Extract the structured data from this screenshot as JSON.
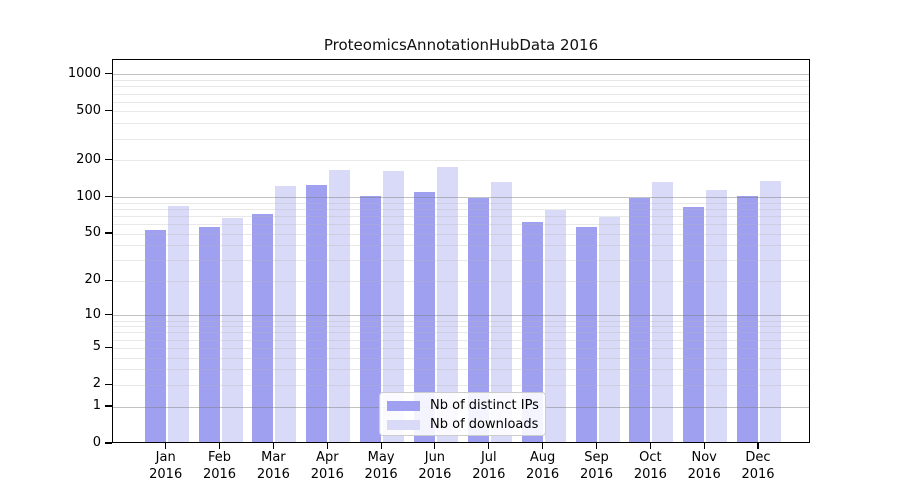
{
  "chart_data": {
    "type": "bar",
    "title": "ProteomicsAnnotationHubData 2016",
    "categories": [
      "Jan",
      "Feb",
      "Mar",
      "Apr",
      "May",
      "Jun",
      "Jul",
      "Aug",
      "Sep",
      "Oct",
      "Nov",
      "Dec"
    ],
    "x_year_label": "2016",
    "series": [
      {
        "name": "Nb of distinct IPs",
        "color": "#a0a0f0",
        "values": [
          52,
          55,
          70,
          122,
          100,
          106,
          96,
          60,
          55,
          95,
          80,
          100
        ]
      },
      {
        "name": "Nb of downloads",
        "color": "#d9d9f8",
        "values": [
          82,
          65,
          120,
          163,
          160,
          170,
          130,
          76,
          67,
          130,
          112,
          131
        ]
      }
    ],
    "yscale": "log1p",
    "ylim": [
      0,
      1300
    ],
    "yticks": [
      1000,
      500,
      200,
      100,
      50,
      20,
      10,
      5,
      2,
      1,
      0
    ],
    "grid": {
      "enabled": true,
      "major_lines": [
        1,
        10,
        100,
        1000
      ],
      "minor_multiples_per_decade": [
        2,
        3,
        4,
        5,
        6,
        7,
        8,
        9
      ]
    },
    "legend_position": "bottom-center"
  },
  "colors": {
    "background": "#ffffff",
    "axis": "#000000",
    "major_grid": "rgba(120,120,120,0.45)",
    "minor_grid": "rgba(185,185,185,0.32)",
    "legend_border": "#cccccc"
  }
}
